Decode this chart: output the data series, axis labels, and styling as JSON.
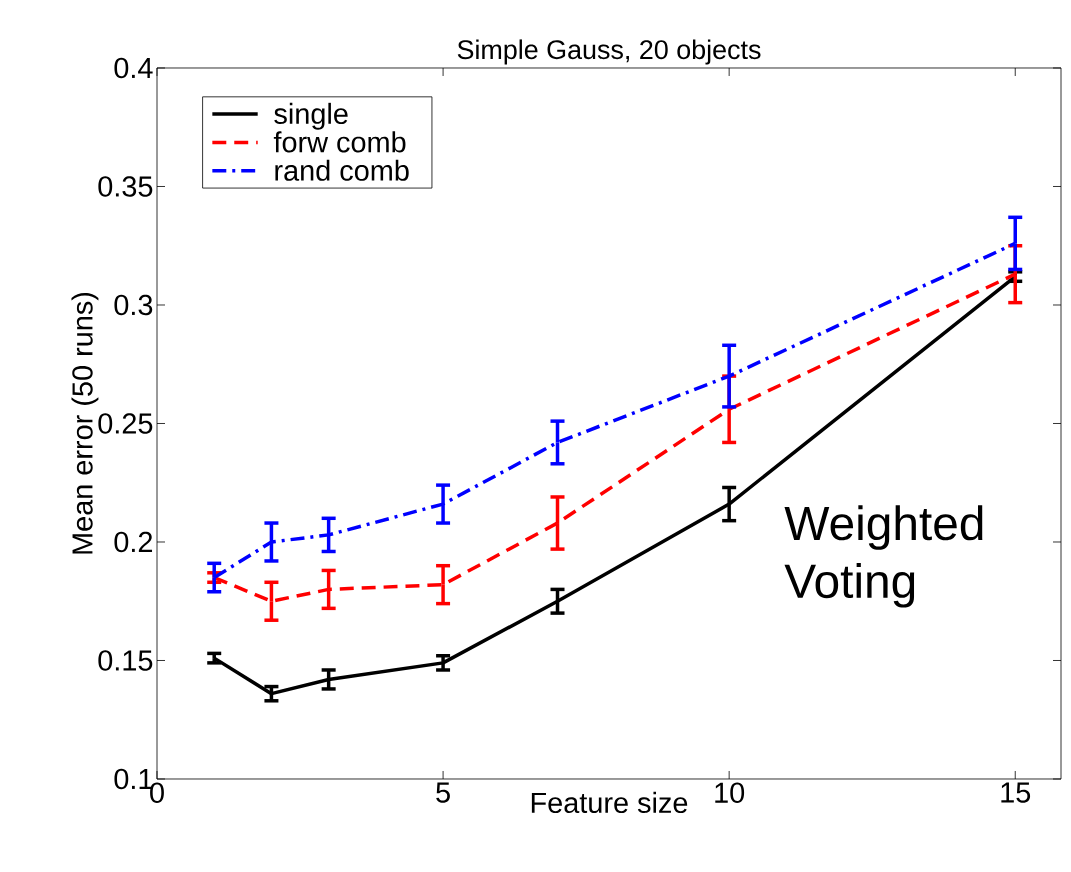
{
  "chart_data": {
    "type": "line",
    "title": "Simple Gauss, 20 objects",
    "xlabel": "Feature size",
    "ylabel": "Mean error (50 runs)",
    "annotations": [
      "Weighted Voting"
    ],
    "x": [
      1,
      2,
      3,
      5,
      7,
      10,
      15
    ],
    "series": [
      {
        "name": "single",
        "color": "#000000",
        "line_style": "solid",
        "values": [
          0.151,
          0.136,
          0.142,
          0.149,
          0.175,
          0.216,
          0.312
        ],
        "errors": [
          0.002,
          0.003,
          0.004,
          0.003,
          0.005,
          0.007,
          0.002
        ]
      },
      {
        "name": "forw comb",
        "color": "#ff0000",
        "line_style": "dashed",
        "values": [
          0.185,
          0.175,
          0.18,
          0.182,
          0.208,
          0.256,
          0.313
        ],
        "errors": [
          0.002,
          0.008,
          0.008,
          0.008,
          0.011,
          0.014,
          0.012
        ]
      },
      {
        "name": "rand comb",
        "color": "#0000ff",
        "line_style": "dashdot",
        "values": [
          0.185,
          0.2,
          0.203,
          0.216,
          0.242,
          0.27,
          0.326
        ],
        "errors": [
          0.006,
          0.008,
          0.007,
          0.008,
          0.009,
          0.013,
          0.011
        ]
      }
    ],
    "xlim": [
      0,
      15.8
    ],
    "ylim": [
      0.1,
      0.4
    ],
    "xticks": [
      0,
      5,
      10,
      15
    ],
    "yticks": [
      0.1,
      0.15,
      0.2,
      0.25,
      0.3,
      0.35,
      0.4
    ],
    "grid": false,
    "legend": "top left",
    "marker": "none"
  }
}
